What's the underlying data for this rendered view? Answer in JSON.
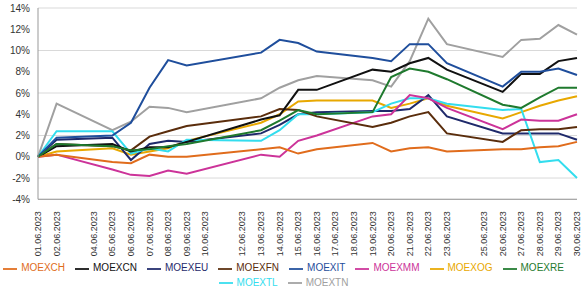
{
  "chart_data": {
    "type": "line",
    "categories": [
      "01.06.2023",
      "02.06.2023",
      null,
      "04.06.2023",
      "05.06.2023",
      "06.06.2023",
      "07.06.2023",
      "08.06.2023",
      "09.06.2023",
      "10.06.2023",
      null,
      "12.06.2023",
      "13.06.2023",
      "14.06.2023",
      "15.06.2023",
      "16.06.2023",
      "17.06.2023",
      "18.06.2023",
      "19.06.2023",
      "20.06.2023",
      "21.06.2023",
      "22.06.2023",
      "23.06.2023",
      null,
      "25.06.2023",
      "26.06.2023",
      "27.06.2023",
      "28.06.2023",
      "29.06.2023",
      "30.06.2023"
    ],
    "series": [
      {
        "name": "MOEXTN",
        "color": "#a0a0a0",
        "values": [
          0,
          5.0,
          null,
          null,
          2.5,
          3.3,
          4.7,
          4.6,
          4.2,
          null,
          null,
          null,
          5.5,
          6.5,
          7.2,
          7.6,
          null,
          null,
          7.2,
          6.6,
          9.0,
          13.0,
          10.6,
          null,
          null,
          9.4,
          11.0,
          11.1,
          12.4,
          11.5
        ]
      },
      {
        "name": "MOEXOG",
        "color": "#e8a800",
        "values": [
          0,
          0.5,
          null,
          null,
          0.8,
          0.2,
          0.5,
          0.8,
          1.5,
          null,
          null,
          null,
          3.2,
          4.0,
          5.2,
          5.3,
          null,
          null,
          5.3,
          4.6,
          5.0,
          5.5,
          4.8,
          null,
          null,
          3.6,
          4.2,
          4.8,
          5.3,
          5.7
        ]
      },
      {
        "name": "MOEXEU",
        "color": "#1f2a6b",
        "values": [
          0,
          1.6,
          null,
          null,
          1.8,
          -0.3,
          1.2,
          1.5,
          1.4,
          null,
          null,
          null,
          2.2,
          3.0,
          4.0,
          4.2,
          null,
          null,
          4.3,
          4.3,
          4.5,
          5.8,
          3.8,
          null,
          null,
          2.2,
          2.2,
          2.2,
          2.2,
          1.6
        ]
      },
      {
        "name": "MOEXTL",
        "color": "#33ddee",
        "values": [
          0,
          2.4,
          null,
          null,
          2.4,
          0.3,
          0.8,
          0.5,
          1.6,
          null,
          null,
          null,
          1.5,
          2.5,
          4.0,
          4.0,
          null,
          null,
          4.2,
          5.0,
          5.5,
          5.5,
          5.0,
          null,
          null,
          4.4,
          4.5,
          -0.5,
          -0.3,
          -2.0
        ]
      },
      {
        "name": "MOEXMM",
        "color": "#cc3399",
        "values": [
          0,
          0.2,
          null,
          null,
          -1.2,
          -1.7,
          -1.8,
          -1.3,
          -1.6,
          null,
          null,
          null,
          0.2,
          0.0,
          1.5,
          2.0,
          null,
          null,
          3.8,
          4.0,
          5.8,
          5.5,
          4.6,
          null,
          null,
          2.6,
          3.5,
          3.4,
          3.4,
          4.0
        ]
      },
      {
        "name": "MOEXFN",
        "color": "#5a2d0c",
        "values": [
          0,
          1.2,
          null,
          null,
          1.0,
          0.6,
          1.9,
          2.4,
          2.9,
          null,
          null,
          null,
          3.8,
          4.5,
          4.4,
          3.8,
          null,
          null,
          2.8,
          3.2,
          3.8,
          4.2,
          2.2,
          null,
          null,
          1.4,
          2.5,
          2.6,
          2.6,
          2.8
        ]
      },
      {
        "name": "MOEXCN",
        "color": "#111111",
        "values": [
          0,
          1.0,
          null,
          null,
          1.2,
          0.5,
          0.9,
          0.9,
          1.4,
          null,
          null,
          null,
          3.5,
          3.9,
          6.3,
          6.3,
          null,
          null,
          8.2,
          8.0,
          8.8,
          9.3,
          8.2,
          null,
          null,
          6.1,
          7.8,
          7.8,
          9.0,
          9.3
        ]
      },
      {
        "name": "MOEXCH",
        "color": "#e06c1c",
        "values": [
          0,
          0.2,
          null,
          null,
          -0.5,
          -0.6,
          0.2,
          0.0,
          0.0,
          null,
          null,
          null,
          0.7,
          0.9,
          0.3,
          0.7,
          null,
          null,
          1.3,
          0.5,
          0.8,
          0.9,
          0.5,
          null,
          null,
          0.7,
          0.7,
          0.9,
          1.0,
          1.4
        ]
      },
      {
        "name": "MOEXIT",
        "color": "#1f4e9c",
        "values": [
          0,
          1.8,
          null,
          null,
          2.0,
          3.2,
          6.5,
          9.1,
          8.6,
          null,
          null,
          null,
          9.8,
          11.0,
          10.7,
          9.9,
          null,
          null,
          9.3,
          9.0,
          10.6,
          10.6,
          8.8,
          null,
          null,
          6.6,
          8.0,
          8.0,
          8.3,
          7.7
        ]
      },
      {
        "name": "MOEXRE",
        "color": "#1f7a2e",
        "values": [
          0,
          1.2,
          null,
          null,
          1.0,
          0.6,
          0.7,
          1.0,
          1.2,
          null,
          null,
          null,
          2.5,
          3.4,
          4.4,
          4.0,
          null,
          null,
          4.2,
          7.5,
          8.3,
          8.0,
          7.3,
          null,
          null,
          4.9,
          4.6,
          5.6,
          6.5,
          6.5
        ]
      }
    ],
    "ylim": [
      -4,
      14
    ],
    "yticks": [
      {
        "value": -4,
        "label": "-4%"
      },
      {
        "value": -2,
        "label": "-2%"
      },
      {
        "value": 0,
        "label": "0%"
      },
      {
        "value": 2,
        "label": "2%"
      },
      {
        "value": 4,
        "label": "4%"
      },
      {
        "value": 6,
        "label": "6%"
      },
      {
        "value": 8,
        "label": "8%"
      },
      {
        "value": 10,
        "label": "10%"
      },
      {
        "value": 12,
        "label": "12%"
      },
      {
        "value": 14,
        "label": "14%"
      }
    ],
    "grid": true,
    "legend": "bottom"
  }
}
